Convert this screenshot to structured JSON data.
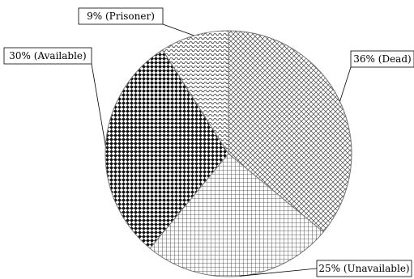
{
  "chart_data": {
    "type": "pie",
    "slices": [
      {
        "label": "Dead",
        "value": 36,
        "text": "36% (Dead)",
        "pattern": "diag-cross"
      },
      {
        "label": "Unavailable",
        "value": 25,
        "text": "25% (Unavailable)",
        "pattern": "grid"
      },
      {
        "label": "Available",
        "value": 30,
        "text": "30% (Available)",
        "pattern": "checker"
      },
      {
        "label": "Prisoner",
        "value": 9,
        "text": "9% (Prisoner)",
        "pattern": "waves"
      }
    ]
  }
}
